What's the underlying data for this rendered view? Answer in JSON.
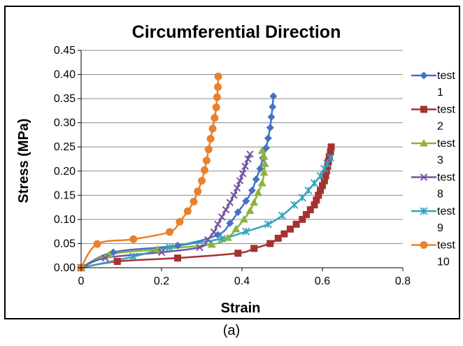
{
  "caption": "(a)",
  "colors": {
    "test1": "#4472C4",
    "test2": "#A5322F",
    "test3": "#8DB33D",
    "test8": "#7253A1",
    "test9": "#33A3BF",
    "test10": "#E8812D"
  },
  "chart_data": {
    "type": "scatter",
    "title": "Circumferential Direction",
    "xlabel": "Strain",
    "ylabel": "Stress (MPa)",
    "xlim": [
      0,
      0.8
    ],
    "ylim": [
      0,
      0.45
    ],
    "xticks": [
      "0",
      "0.2",
      "0.4",
      "0.6",
      "0.8"
    ],
    "xtick_values": [
      0,
      0.2,
      0.4,
      0.6,
      0.8
    ],
    "yticks": [
      "0.00",
      "0.05",
      "0.10",
      "0.15",
      "0.20",
      "0.25",
      "0.30",
      "0.35",
      "0.40",
      "0.45"
    ],
    "ytick_values": [
      0,
      0.05,
      0.1,
      0.15,
      0.2,
      0.25,
      0.3,
      0.35,
      0.4,
      0.45
    ],
    "grid": "horizontal",
    "legend_position": "right",
    "series": [
      {
        "name": "test 1",
        "label_lines": [
          "test",
          "1"
        ],
        "marker": "diamond",
        "color_key": "test1",
        "points": [
          [
            0,
            0
          ],
          [
            0.08,
            0.032
          ],
          [
            0.24,
            0.046
          ],
          [
            0.34,
            0.068
          ],
          [
            0.37,
            0.092
          ],
          [
            0.39,
            0.115
          ],
          [
            0.41,
            0.138
          ],
          [
            0.425,
            0.16
          ],
          [
            0.435,
            0.183
          ],
          [
            0.445,
            0.205
          ],
          [
            0.452,
            0.227
          ],
          [
            0.46,
            0.248
          ],
          [
            0.465,
            0.268
          ],
          [
            0.47,
            0.29
          ],
          [
            0.473,
            0.312
          ],
          [
            0.476,
            0.333
          ],
          [
            0.478,
            0.355
          ]
        ]
      },
      {
        "name": "test 2",
        "label_lines": [
          "test",
          "2"
        ],
        "marker": "square",
        "color_key": "test2",
        "points": [
          [
            0,
            0
          ],
          [
            0.09,
            0.013
          ],
          [
            0.24,
            0.02
          ],
          [
            0.39,
            0.03
          ],
          [
            0.43,
            0.04
          ],
          [
            0.47,
            0.05
          ],
          [
            0.49,
            0.061
          ],
          [
            0.505,
            0.07
          ],
          [
            0.52,
            0.08
          ],
          [
            0.535,
            0.09
          ],
          [
            0.55,
            0.1
          ],
          [
            0.56,
            0.11
          ],
          [
            0.57,
            0.12
          ],
          [
            0.58,
            0.13
          ],
          [
            0.585,
            0.14
          ],
          [
            0.59,
            0.15
          ],
          [
            0.595,
            0.16
          ],
          [
            0.6,
            0.17
          ],
          [
            0.605,
            0.18
          ],
          [
            0.608,
            0.19
          ],
          [
            0.61,
            0.2
          ],
          [
            0.613,
            0.21
          ],
          [
            0.615,
            0.22
          ],
          [
            0.617,
            0.23
          ],
          [
            0.62,
            0.24
          ],
          [
            0.622,
            0.25
          ]
        ]
      },
      {
        "name": "test 3",
        "label_lines": [
          "test",
          "3"
        ],
        "marker": "triangle",
        "color_key": "test3",
        "points": [
          [
            0,
            0
          ],
          [
            0.07,
            0.027
          ],
          [
            0.19,
            0.038
          ],
          [
            0.325,
            0.048
          ],
          [
            0.365,
            0.062
          ],
          [
            0.385,
            0.08
          ],
          [
            0.405,
            0.1
          ],
          [
            0.42,
            0.118
          ],
          [
            0.43,
            0.135
          ],
          [
            0.44,
            0.155
          ],
          [
            0.45,
            0.175
          ],
          [
            0.455,
            0.197
          ],
          [
            0.457,
            0.215
          ],
          [
            0.455,
            0.23
          ],
          [
            0.45,
            0.242
          ]
        ]
      },
      {
        "name": "test 8",
        "label_lines": [
          "test",
          "8"
        ],
        "marker": "x",
        "color_key": "test8",
        "points": [
          [
            0,
            0
          ],
          [
            0.06,
            0.02
          ],
          [
            0.2,
            0.032
          ],
          [
            0.295,
            0.042
          ],
          [
            0.315,
            0.058
          ],
          [
            0.33,
            0.074
          ],
          [
            0.34,
            0.09
          ],
          [
            0.35,
            0.105
          ],
          [
            0.36,
            0.12
          ],
          [
            0.37,
            0.135
          ],
          [
            0.38,
            0.15
          ],
          [
            0.388,
            0.165
          ],
          [
            0.395,
            0.18
          ],
          [
            0.402,
            0.195
          ],
          [
            0.408,
            0.21
          ],
          [
            0.415,
            0.225
          ],
          [
            0.42,
            0.235
          ]
        ]
      },
      {
        "name": "test 9",
        "label_lines": [
          "test",
          "9"
        ],
        "marker": "asterisk",
        "color_key": "test9",
        "points": [
          [
            0,
            0
          ],
          [
            0.13,
            0.023
          ],
          [
            0.22,
            0.042
          ],
          [
            0.35,
            0.06
          ],
          [
            0.41,
            0.075
          ],
          [
            0.465,
            0.09
          ],
          [
            0.5,
            0.108
          ],
          [
            0.53,
            0.13
          ],
          [
            0.55,
            0.145
          ],
          [
            0.565,
            0.16
          ],
          [
            0.58,
            0.175
          ],
          [
            0.595,
            0.19
          ],
          [
            0.605,
            0.205
          ],
          [
            0.612,
            0.215
          ],
          [
            0.62,
            0.228
          ]
        ]
      },
      {
        "name": "test 10",
        "label_lines": [
          "test",
          "10"
        ],
        "marker": "circle",
        "color_key": "test10",
        "points": [
          [
            0,
            0
          ],
          [
            0.04,
            0.049
          ],
          [
            0.13,
            0.059
          ],
          [
            0.22,
            0.074
          ],
          [
            0.245,
            0.095
          ],
          [
            0.265,
            0.117
          ],
          [
            0.28,
            0.137
          ],
          [
            0.29,
            0.158
          ],
          [
            0.3,
            0.18
          ],
          [
            0.307,
            0.202
          ],
          [
            0.312,
            0.222
          ],
          [
            0.317,
            0.245
          ],
          [
            0.322,
            0.267
          ],
          [
            0.327,
            0.288
          ],
          [
            0.332,
            0.31
          ],
          [
            0.336,
            0.332
          ],
          [
            0.338,
            0.353
          ],
          [
            0.34,
            0.374
          ],
          [
            0.341,
            0.396
          ]
        ]
      }
    ]
  }
}
